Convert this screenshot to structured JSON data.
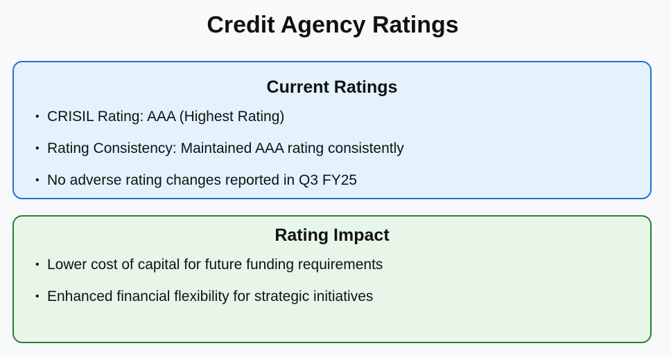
{
  "title": "Credit Agency Ratings",
  "current_ratings": {
    "heading": "Current Ratings",
    "items": [
      "CRISIL Rating: AAA (Highest Rating)",
      "Rating Consistency: Maintained AAA rating consistently",
      "No adverse rating changes reported in Q3 FY25"
    ]
  },
  "rating_impact": {
    "heading": "Rating Impact",
    "items": [
      "Lower cost of capital for future funding requirements",
      "Enhanced financial flexibility for strategic initiatives"
    ]
  },
  "colors": {
    "current_ratings_border": "#1e6fd0",
    "current_ratings_background": "#e3f2fd",
    "rating_impact_border": "#2e7d32",
    "rating_impact_background": "#e8f5e9"
  },
  "bullet_glyph": "•"
}
